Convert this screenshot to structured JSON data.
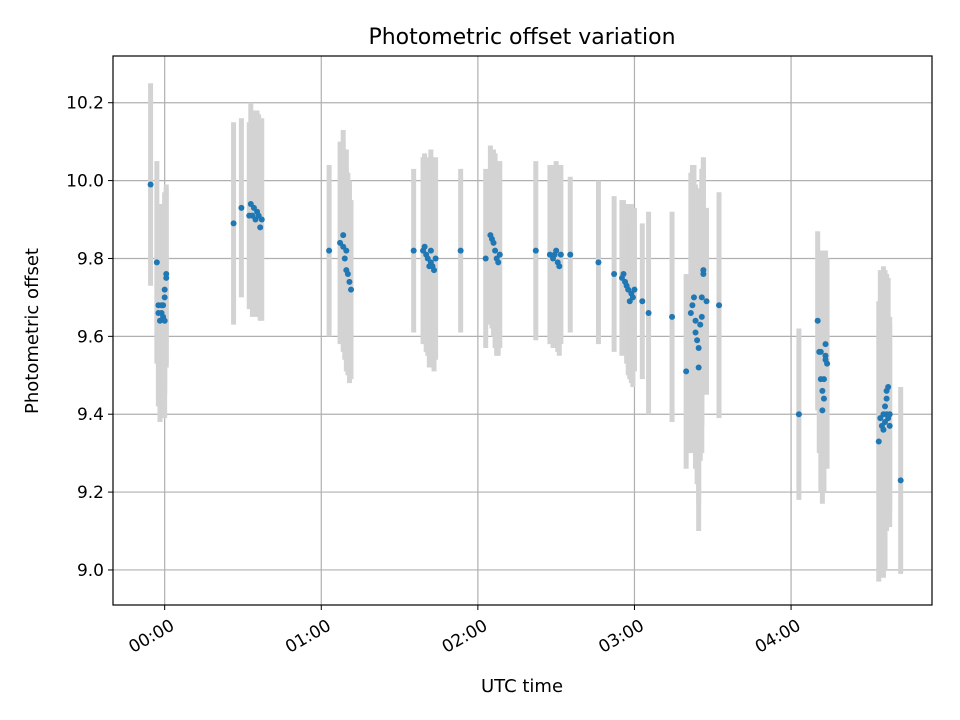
{
  "chart_data": {
    "type": "scatter",
    "title": "Photometric offset variation",
    "xlabel": "UTC time",
    "ylabel": "Photometric offset",
    "x_unit": "hours",
    "x_ticks": [
      {
        "value": 0,
        "label": "00:00"
      },
      {
        "value": 1,
        "label": "01:00"
      },
      {
        "value": 2,
        "label": "02:00"
      },
      {
        "value": 3,
        "label": "03:00"
      },
      {
        "value": 4,
        "label": "04:00"
      }
    ],
    "y_ticks": [
      {
        "value": 9.0,
        "label": "9.0"
      },
      {
        "value": 9.2,
        "label": "9.2"
      },
      {
        "value": 9.4,
        "label": "9.4"
      },
      {
        "value": 9.6,
        "label": "9.6"
      },
      {
        "value": 9.8,
        "label": "9.8"
      },
      {
        "value": 10.0,
        "label": "10.0"
      },
      {
        "value": 10.2,
        "label": "10.2"
      }
    ],
    "xlim": [
      -0.33,
      4.9
    ],
    "ylim": [
      8.91,
      10.32
    ],
    "grid": true,
    "point_color": "#1f77b4",
    "errorbar_color": "#d3d3d3",
    "points": [
      [
        -0.09,
        9.99,
        0.26
      ],
      [
        -0.05,
        9.79,
        0.26
      ],
      [
        -0.04,
        9.68,
        0.24
      ],
      [
        -0.04,
        9.66,
        0.24
      ],
      [
        -0.03,
        9.64,
        0.26
      ],
      [
        -0.02,
        9.68,
        0.26
      ],
      [
        -0.02,
        9.66,
        0.26
      ],
      [
        -0.01,
        9.65,
        0.26
      ],
      [
        -0.01,
        9.68,
        0.26
      ],
      [
        0.0,
        9.64,
        0.25
      ],
      [
        0.0,
        9.72,
        0.25
      ],
      [
        0.0,
        9.7,
        0.25
      ],
      [
        0.01,
        9.76,
        0.23
      ],
      [
        0.01,
        9.75,
        0.23
      ],
      [
        0.44,
        9.89,
        0.26
      ],
      [
        0.49,
        9.93,
        0.23
      ],
      [
        0.54,
        9.91,
        0.24
      ],
      [
        0.55,
        9.94,
        0.26
      ],
      [
        0.56,
        9.91,
        0.26
      ],
      [
        0.57,
        9.93,
        0.25
      ],
      [
        0.58,
        9.9,
        0.25
      ],
      [
        0.59,
        9.92,
        0.26
      ],
      [
        0.6,
        9.91,
        0.26
      ],
      [
        0.61,
        9.88,
        0.24
      ],
      [
        0.62,
        9.9,
        0.26
      ],
      [
        1.05,
        9.82,
        0.22
      ],
      [
        1.12,
        9.84,
        0.26
      ],
      [
        1.14,
        9.86,
        0.27
      ],
      [
        1.14,
        9.83,
        0.27
      ],
      [
        1.15,
        9.8,
        0.26
      ],
      [
        1.16,
        9.77,
        0.26
      ],
      [
        1.16,
        9.82,
        0.26
      ],
      [
        1.17,
        9.76,
        0.26
      ],
      [
        1.18,
        9.74,
        0.26
      ],
      [
        1.19,
        9.72,
        0.23
      ],
      [
        1.59,
        9.82,
        0.21
      ],
      [
        1.65,
        9.82,
        0.24
      ],
      [
        1.66,
        9.83,
        0.24
      ],
      [
        1.67,
        9.81,
        0.25
      ],
      [
        1.68,
        9.8,
        0.25
      ],
      [
        1.69,
        9.78,
        0.26
      ],
      [
        1.7,
        9.79,
        0.27
      ],
      [
        1.7,
        9.82,
        0.26
      ],
      [
        1.71,
        9.78,
        0.26
      ],
      [
        1.72,
        9.77,
        0.26
      ],
      [
        1.73,
        9.8,
        0.26
      ],
      [
        1.89,
        9.82,
        0.21
      ],
      [
        2.05,
        9.8,
        0.23
      ],
      [
        2.08,
        9.86,
        0.23
      ],
      [
        2.09,
        9.85,
        0.23
      ],
      [
        2.1,
        9.84,
        0.24
      ],
      [
        2.11,
        9.82,
        0.25
      ],
      [
        2.12,
        9.8,
        0.25
      ],
      [
        2.13,
        9.79,
        0.24
      ],
      [
        2.14,
        9.81,
        0.24
      ],
      [
        2.37,
        9.82,
        0.23
      ],
      [
        2.46,
        9.81,
        0.23
      ],
      [
        2.48,
        9.8,
        0.23
      ],
      [
        2.49,
        9.81,
        0.23
      ],
      [
        2.5,
        9.82,
        0.23
      ],
      [
        2.51,
        9.79,
        0.23
      ],
      [
        2.52,
        9.78,
        0.23
      ],
      [
        2.53,
        9.81,
        0.23
      ],
      [
        2.59,
        9.81,
        0.2
      ],
      [
        2.77,
        9.79,
        0.21
      ],
      [
        2.87,
        9.76,
        0.2
      ],
      [
        2.92,
        9.75,
        0.2
      ],
      [
        2.93,
        9.76,
        0.19
      ],
      [
        2.94,
        9.74,
        0.19
      ],
      [
        2.95,
        9.73,
        0.2
      ],
      [
        2.96,
        9.72,
        0.22
      ],
      [
        2.97,
        9.69,
        0.2
      ],
      [
        2.98,
        9.71,
        0.23
      ],
      [
        2.99,
        9.7,
        0.23
      ],
      [
        3.0,
        9.72,
        0.21
      ],
      [
        3.05,
        9.69,
        0.2
      ],
      [
        3.09,
        9.66,
        0.26
      ],
      [
        3.24,
        9.65,
        0.27
      ],
      [
        3.33,
        9.51,
        0.25
      ],
      [
        3.36,
        9.66,
        0.36
      ],
      [
        3.37,
        9.68,
        0.36
      ],
      [
        3.38,
        9.7,
        0.34
      ],
      [
        3.39,
        9.61,
        0.35
      ],
      [
        3.39,
        9.64,
        0.35
      ],
      [
        3.4,
        9.59,
        0.37
      ],
      [
        3.41,
        9.57,
        0.4
      ],
      [
        3.41,
        9.52,
        0.42
      ],
      [
        3.42,
        9.63,
        0.35
      ],
      [
        3.43,
        9.65,
        0.35
      ],
      [
        3.43,
        9.7,
        0.33
      ],
      [
        3.44,
        9.77,
        0.29
      ],
      [
        3.44,
        9.76,
        0.29
      ],
      [
        3.46,
        9.69,
        0.24
      ],
      [
        3.54,
        9.68,
        0.29
      ],
      [
        4.05,
        9.4,
        0.22
      ],
      [
        4.17,
        9.64,
        0.23
      ],
      [
        4.18,
        9.56,
        0.26
      ],
      [
        4.19,
        9.49,
        0.29
      ],
      [
        4.19,
        9.56,
        0.26
      ],
      [
        4.2,
        9.41,
        0.24
      ],
      [
        4.2,
        9.46,
        0.23
      ],
      [
        4.21,
        9.49,
        0.23
      ],
      [
        4.21,
        9.44,
        0.24
      ],
      [
        4.22,
        9.55,
        0.27
      ],
      [
        4.22,
        9.58,
        0.24
      ],
      [
        4.22,
        9.54,
        0.27
      ],
      [
        4.23,
        9.53,
        0.27
      ],
      [
        4.56,
        9.33,
        0.36
      ],
      [
        4.57,
        9.39,
        0.38
      ],
      [
        4.58,
        9.37,
        0.38
      ],
      [
        4.59,
        9.36,
        0.38
      ],
      [
        4.59,
        9.4,
        0.38
      ],
      [
        4.6,
        9.42,
        0.35
      ],
      [
        4.6,
        9.38,
        0.38
      ],
      [
        4.61,
        9.44,
        0.32
      ],
      [
        4.61,
        9.46,
        0.3
      ],
      [
        4.61,
        9.4,
        0.3
      ],
      [
        4.62,
        9.47,
        0.28
      ],
      [
        4.62,
        9.39,
        0.26
      ],
      [
        4.63,
        9.4,
        0.25
      ],
      [
        4.63,
        9.37,
        0.26
      ],
      [
        4.7,
        9.23,
        0.24
      ]
    ]
  }
}
